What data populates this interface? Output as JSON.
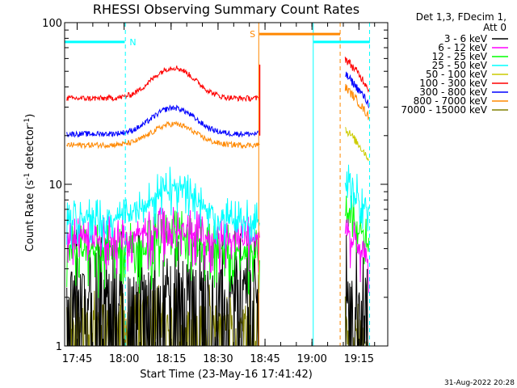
{
  "chart_data": {
    "type": "line",
    "title": "RHESSI Observing Summary Count Rates",
    "xlabel": "Start Time (23-May-16 17:41:42)",
    "ylabel_main": "Count Rate (s",
    "ylabel_sup1": "-1",
    "ylabel_mid": " detector",
    "ylabel_sup2": "-1",
    "ylabel_end": ")",
    "yscale": "log",
    "ylim": [
      1,
      100
    ],
    "xlim_minutes": [
      -0.7,
      102.5
    ],
    "x_tick_labels": [
      "17:45",
      "18:00",
      "18:15",
      "18:30",
      "18:45",
      "19:00",
      "19:15"
    ],
    "x_tick_minutes": [
      3.3,
      18.3,
      33.3,
      48.3,
      63.3,
      78.3,
      93.3
    ],
    "y_tick_labels": [
      "1",
      "10",
      "100"
    ],
    "y_tick_values": [
      1,
      10,
      100
    ],
    "legend_header": [
      "Det 1,3, FDecim 1,",
      "Att 0"
    ],
    "legend_position": "right",
    "series": [
      {
        "name": "3 - 6 keV",
        "color": "#000000",
        "level": 2.4,
        "hump": 1.0,
        "spread": 0.25,
        "noise": 1.2,
        "after": 2.3,
        "dropout": true
      },
      {
        "name": "6 - 12 keV",
        "color": "#ff00ff",
        "level": 4.6,
        "hump": 1.15,
        "spread": 0.1,
        "noise": 0.4,
        "after": 5.0,
        "dropout": false
      },
      {
        "name": "12 - 25 keV",
        "color": "#00ff00",
        "level": 3.8,
        "hump": 1.25,
        "spread": 0.12,
        "noise": 0.5,
        "after": 6.5,
        "dropout": false
      },
      {
        "name": "25 - 50 keV",
        "color": "#00ffff",
        "level": 6.0,
        "hump": 1.6,
        "spread": 0.08,
        "noise": 0.35,
        "after": 10.5,
        "dropout": false
      },
      {
        "name": "50 - 100 keV",
        "color": "#cccc00",
        "level": null,
        "hump": 0,
        "spread": 0,
        "noise": 0,
        "after": 22.0,
        "dropout": false
      },
      {
        "name": "100 - 300 keV",
        "color": "#ff0000",
        "level": 34,
        "hump": 1.55,
        "spread": 0.04,
        "noise": 0.05,
        "after": 60,
        "dropout": false
      },
      {
        "name": "300 - 800 keV",
        "color": "#0000ff",
        "level": 20.5,
        "hump": 1.45,
        "spread": 0.04,
        "noise": 0.05,
        "after": 48,
        "dropout": false
      },
      {
        "name": "800 - 7000 keV",
        "color": "#ff8800",
        "level": 17.5,
        "hump": 1.35,
        "spread": 0.04,
        "noise": 0.05,
        "after": 40,
        "dropout": false
      },
      {
        "name": "7000 - 15000 keV",
        "color": "#808000",
        "level": 1.5,
        "hump": 1.0,
        "spread": 0.2,
        "noise": 0.6,
        "after": 1.6,
        "dropout": true
      }
    ],
    "segments": {
      "first_start": 0.0,
      "first_end": 61.6,
      "second_start": 88.9,
      "second_end": 96.5,
      "hump_center": 34.0,
      "hump_width": 9.0
    },
    "flag_bars": [
      {
        "label": "N",
        "color": "#00ffff",
        "start": -0.7,
        "end": 18.5,
        "level": 76
      },
      {
        "label": "",
        "color": "#00ffff",
        "start": 78.8,
        "end": 96.8,
        "level": 76
      },
      {
        "label": "S",
        "color": "#ff8800",
        "start": 61.5,
        "end": 87.3,
        "level": 85
      }
    ],
    "flag_lines": [
      {
        "color": "#00ffff",
        "x": 18.7,
        "style": "dashed"
      },
      {
        "color": "#ff8800",
        "x": 61.3,
        "style": "solid"
      },
      {
        "color": "#00ffff",
        "x": 78.7,
        "style": "solid"
      },
      {
        "color": "#ff8800",
        "x": 87.3,
        "style": "dashed"
      },
      {
        "color": "#00ffff",
        "x": 96.7,
        "style": "dashed"
      }
    ]
  },
  "footer": {
    "timestamp": "31-Aug-2022 20:28"
  }
}
